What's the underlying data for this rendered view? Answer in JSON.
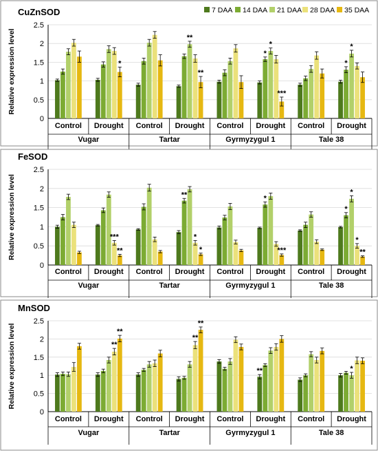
{
  "legend": {
    "labels": [
      "7 DAA",
      "14 DAA",
      "21 DAA",
      "28 DAA",
      "35 DAA"
    ],
    "colors": [
      "#4e7a1d",
      "#7cab33",
      "#b2d06a",
      "#ebe17b",
      "#e6b812"
    ]
  },
  "chart_data": [
    {
      "type": "bar",
      "title": "CuZnSOD",
      "ylabel": "Relative expression level",
      "ylim": [
        0,
        2.5
      ],
      "yticks": [
        "0",
        "0.5",
        "1",
        "1.5",
        "2",
        "2.5"
      ],
      "treatments": [
        "Control",
        "Drought",
        "Control",
        "Drought",
        "Control",
        "Drought",
        "Control",
        "Drought"
      ],
      "varieties": [
        "Vugar",
        "Tartar",
        "Gyrmyzygul 1",
        "Tale 38"
      ],
      "series_names": [
        "7 DAA",
        "14 DAA",
        "21 DAA",
        "28 DAA",
        "35 DAA"
      ],
      "values": [
        [
          1.02,
          1.25,
          1.78,
          2.02,
          1.65
        ],
        [
          1.03,
          1.44,
          1.85,
          1.8,
          1.24
        ],
        [
          0.9,
          1.53,
          2.02,
          2.23,
          1.55
        ],
        [
          0.86,
          1.66,
          1.98,
          1.6,
          0.97
        ],
        [
          0.98,
          1.22,
          1.53,
          1.87,
          0.97
        ],
        [
          0.96,
          1.58,
          1.8,
          1.58,
          0.45
        ],
        [
          0.9,
          1.07,
          1.32,
          1.68,
          1.2
        ],
        [
          0.98,
          1.3,
          1.73,
          1.4,
          1.1
        ]
      ],
      "errors": [
        [
          0.03,
          0.07,
          0.08,
          0.09,
          0.15
        ],
        [
          0.04,
          0.07,
          0.09,
          0.09,
          0.13
        ],
        [
          0.04,
          0.08,
          0.09,
          0.09,
          0.15
        ],
        [
          0.03,
          0.06,
          0.08,
          0.1,
          0.15
        ],
        [
          0.04,
          0.08,
          0.08,
          0.1,
          0.17
        ],
        [
          0.04,
          0.06,
          0.08,
          0.1,
          0.12
        ],
        [
          0.04,
          0.06,
          0.09,
          0.1,
          0.12
        ],
        [
          0.04,
          0.08,
          0.09,
          0.08,
          0.14
        ]
      ],
      "annotations": [
        {
          "group": 1,
          "series": 4,
          "text": "*"
        },
        {
          "group": 3,
          "series": 2,
          "text": "**"
        },
        {
          "group": 3,
          "series": 4,
          "text": "**"
        },
        {
          "group": 5,
          "series": 1,
          "text": "*"
        },
        {
          "group": 5,
          "series": 2,
          "text": "*"
        },
        {
          "group": 5,
          "series": 4,
          "text": "***"
        },
        {
          "group": 7,
          "series": 1,
          "text": "*"
        },
        {
          "group": 7,
          "series": 2,
          "text": "*"
        }
      ]
    },
    {
      "type": "bar",
      "title": "FeSOD",
      "ylabel": "Relative expression level",
      "ylim": [
        0,
        2.5
      ],
      "yticks": [
        "0",
        "0.5",
        "1",
        "1.5",
        "2",
        "2.5"
      ],
      "treatments": [
        "Control",
        "Drought",
        "Control",
        "Drought",
        "Control",
        "Drought",
        "Control",
        "Drought"
      ],
      "varieties": [
        "Vugar",
        "Tartar",
        "Gyrmyzygul 1",
        "Tale 38"
      ],
      "series_names": [
        "7 DAA",
        "14 DAA",
        "21 DAA",
        "28 DAA",
        "35 DAA"
      ],
      "values": [
        [
          1.0,
          1.25,
          1.78,
          1.05,
          0.33
        ],
        [
          1.04,
          1.43,
          1.84,
          0.58,
          0.25
        ],
        [
          0.93,
          1.52,
          2.02,
          0.67,
          0.35
        ],
        [
          0.86,
          1.68,
          1.98,
          0.58,
          0.28
        ],
        [
          0.98,
          1.24,
          1.53,
          0.6,
          0.38
        ],
        [
          0.97,
          1.58,
          1.8,
          0.55,
          0.26
        ],
        [
          0.9,
          1.05,
          1.32,
          0.61,
          0.4
        ],
        [
          0.99,
          1.3,
          1.73,
          0.5,
          0.22
        ]
      ],
      "errors": [
        [
          0.04,
          0.07,
          0.07,
          0.07,
          0.03
        ],
        [
          0.02,
          0.06,
          0.07,
          0.06,
          0.03
        ],
        [
          0.02,
          0.08,
          0.09,
          0.06,
          0.03
        ],
        [
          0.04,
          0.06,
          0.07,
          0.06,
          0.03
        ],
        [
          0.04,
          0.06,
          0.08,
          0.05,
          0.03
        ],
        [
          0.02,
          0.07,
          0.08,
          0.06,
          0.03
        ],
        [
          0.02,
          0.07,
          0.07,
          0.05,
          0.02
        ],
        [
          0.02,
          0.07,
          0.08,
          0.06,
          0.02
        ]
      ],
      "annotations": [
        {
          "group": 1,
          "series": 3,
          "text": "***"
        },
        {
          "group": 1,
          "series": 4,
          "text": "**"
        },
        {
          "group": 3,
          "series": 1,
          "text": "**"
        },
        {
          "group": 3,
          "series": 3,
          "text": "*"
        },
        {
          "group": 3,
          "series": 4,
          "text": "*"
        },
        {
          "group": 5,
          "series": 1,
          "text": "*"
        },
        {
          "group": 5,
          "series": 4,
          "text": "***"
        },
        {
          "group": 7,
          "series": 1,
          "text": "*"
        },
        {
          "group": 7,
          "series": 2,
          "text": "*"
        },
        {
          "group": 7,
          "series": 3,
          "text": "*"
        },
        {
          "group": 7,
          "series": 4,
          "text": "**"
        }
      ]
    },
    {
      "type": "bar",
      "title": "MnSOD",
      "ylabel": "Relative expression level",
      "ylim": [
        0,
        2.5
      ],
      "yticks": [
        "0",
        "0.5",
        "1",
        "1.5",
        "2",
        "2.5"
      ],
      "treatments": [
        "Control",
        "Drought",
        "Control",
        "Drought",
        "Control",
        "Drought",
        "Control",
        "Drought"
      ],
      "varieties": [
        "Vugar",
        "Tartar",
        "Gyrmyzygul 1",
        "Tale 38"
      ],
      "series_names": [
        "7 DAA",
        "14 DAA",
        "21 DAA",
        "28 DAA",
        "35 DAA"
      ],
      "values": [
        [
          1.02,
          1.04,
          1.03,
          1.23,
          1.8
        ],
        [
          1.02,
          1.12,
          1.42,
          1.65,
          2.01
        ],
        [
          1.02,
          1.15,
          1.3,
          1.33,
          1.6
        ],
        [
          0.9,
          0.93,
          1.3,
          1.83,
          2.25
        ],
        [
          1.38,
          1.18,
          1.38,
          1.98,
          1.78
        ],
        [
          0.96,
          1.28,
          1.68,
          1.78,
          2.0
        ],
        [
          0.88,
          1.0,
          1.58,
          1.42,
          1.67
        ],
        [
          1.0,
          1.07,
          1.0,
          1.41,
          1.4
        ]
      ],
      "errors": [
        [
          0.05,
          0.05,
          0.06,
          0.12,
          0.08
        ],
        [
          0.05,
          0.05,
          0.08,
          0.09,
          0.09
        ],
        [
          0.05,
          0.04,
          0.08,
          0.09,
          0.09
        ],
        [
          0.06,
          0.04,
          0.08,
          0.1,
          0.08
        ],
        [
          0.05,
          0.04,
          0.08,
          0.08,
          0.08
        ],
        [
          0.06,
          0.04,
          0.08,
          0.09,
          0.09
        ],
        [
          0.05,
          0.04,
          0.07,
          0.08,
          0.08
        ],
        [
          0.05,
          0.04,
          0.08,
          0.09,
          0.08
        ]
      ],
      "annotations": [
        {
          "group": 1,
          "series": 3,
          "text": "**"
        },
        {
          "group": 1,
          "series": 4,
          "text": "**"
        },
        {
          "group": 3,
          "series": 3,
          "text": "**"
        },
        {
          "group": 3,
          "series": 4,
          "text": "**"
        },
        {
          "group": 5,
          "series": 0,
          "text": "**"
        },
        {
          "group": 7,
          "series": 2,
          "text": "*"
        }
      ]
    }
  ]
}
